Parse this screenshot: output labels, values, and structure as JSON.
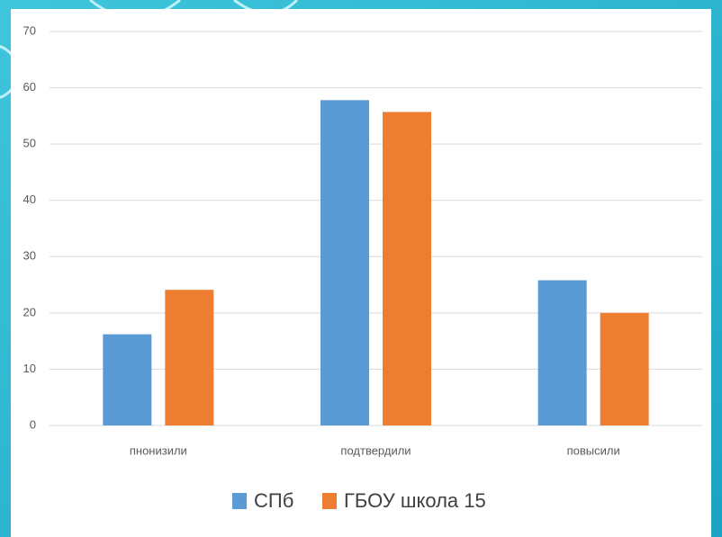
{
  "chart_data": {
    "type": "bar",
    "categories": [
      "пнонизили",
      "подтвердили",
      "повысили"
    ],
    "series": [
      {
        "name": "СПб",
        "color": "#5b9bd5",
        "values": [
          16.2,
          57.8,
          25.8
        ]
      },
      {
        "name": "ГБОУ школа 15",
        "color": "#ed7d31",
        "values": [
          24.1,
          55.7,
          20
        ]
      }
    ],
    "ylim": [
      0,
      70
    ],
    "yticks": [
      0,
      10,
      20,
      30,
      40,
      50,
      60,
      70
    ],
    "grid": true
  }
}
